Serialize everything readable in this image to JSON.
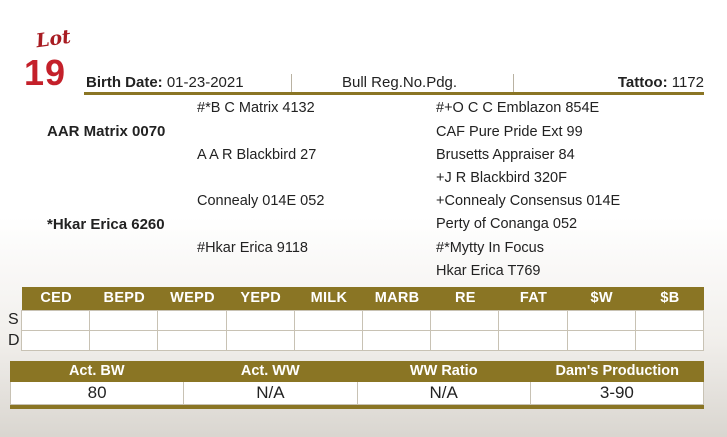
{
  "lot": {
    "word": "Lot",
    "number": "19"
  },
  "header": {
    "birth_date_label": "Birth Date:",
    "birth_date_value": "01-23-2021",
    "registration": "Bull Reg.No.Pdg.",
    "tattoo_label": "Tattoo:",
    "tattoo_value": "1172"
  },
  "pedigree": {
    "sire": "AAR Matrix 0070",
    "sire_sire": "#*B C Matrix 4132",
    "sire_dam": "A A R Blackbird 27",
    "sire_sire_sire": "#+O C C Emblazon 854E",
    "sire_sire_dam": "CAF Pure Pride Ext 99",
    "sire_dam_sire": "Brusetts Appraiser 84",
    "sire_dam_dam": "+J R Blackbird 320F",
    "dam": "*Hkar Erica 6260",
    "dam_sire": "Connealy 014E 052",
    "dam_dam": "#Hkar Erica 9118",
    "dam_sire_sire": "+Connealy Consensus 014E",
    "dam_sire_dam": "Perty of Conanga 052",
    "dam_dam_sire": "#*Mytty In Focus",
    "dam_dam_dam": "Hkar Erica T769"
  },
  "epd_table": {
    "headers": [
      "CED",
      "BEPD",
      "WEPD",
      "YEPD",
      "MILK",
      "MARB",
      "RE",
      "FAT",
      "$W",
      "$B"
    ],
    "row_labels": [
      "S",
      "D"
    ]
  },
  "performance": {
    "headers": [
      "Act. BW",
      "Act. WW",
      "WW Ratio",
      "Dam's Production"
    ],
    "values": [
      "80",
      "N/A",
      "N/A",
      "3-90"
    ]
  },
  "colors": {
    "accent": "#8a7524",
    "lot_red": "#c4202a"
  }
}
